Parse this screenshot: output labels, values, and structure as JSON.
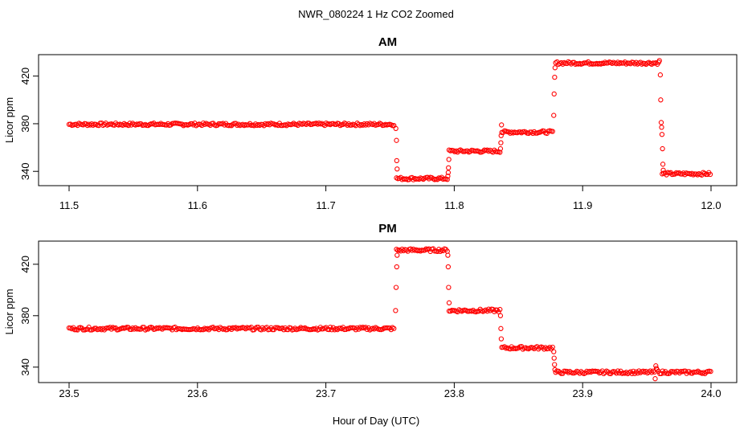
{
  "figure": {
    "title": "NWR_080224  1 Hz CO2 Zoomed",
    "xlabel": "Hour of Day (UTC)"
  },
  "chart_data": [
    {
      "type": "scatter",
      "title": "AM",
      "xlabel": "Hour of Day (UTC)",
      "ylabel": "Licor ppm",
      "xlim": [
        11.5,
        12.0
      ],
      "ylim": [
        328,
        438
      ],
      "xticks": [
        "11.5",
        "11.6",
        "11.7",
        "11.8",
        "11.9",
        "12.0"
      ],
      "yticks": [
        "340",
        "380",
        "420"
      ],
      "marker_color": "#ff0000",
      "marker": "open-circle",
      "grid": false,
      "segments": [
        {
          "x": [
            11.5,
            11.754
          ],
          "y": 379.5
        },
        {
          "x": [
            11.755,
            11.795
          ],
          "y": 334
        },
        {
          "x": [
            11.796,
            11.836
          ],
          "y": 357
        },
        {
          "x": [
            11.837,
            11.877
          ],
          "y": 373
        },
        {
          "x": [
            11.879,
            11.96
          ],
          "y": 431
        },
        {
          "x": [
            11.962,
            12.0
          ],
          "y": 338
        }
      ],
      "transition_points": [
        {
          "x": 11.7545,
          "y": 376
        },
        {
          "x": 11.755,
          "y": 366
        },
        {
          "x": 11.7552,
          "y": 349
        },
        {
          "x": 11.7555,
          "y": 342
        },
        {
          "x": 11.795,
          "y": 336
        },
        {
          "x": 11.7953,
          "y": 339
        },
        {
          "x": 11.7955,
          "y": 343
        },
        {
          "x": 11.7958,
          "y": 350
        },
        {
          "x": 11.836,
          "y": 359
        },
        {
          "x": 11.8363,
          "y": 364
        },
        {
          "x": 11.8365,
          "y": 370
        },
        {
          "x": 11.8368,
          "y": 379
        },
        {
          "x": 11.8775,
          "y": 387
        },
        {
          "x": 11.8778,
          "y": 405
        },
        {
          "x": 11.8782,
          "y": 419
        },
        {
          "x": 11.8785,
          "y": 427
        },
        {
          "x": 11.9598,
          "y": 433
        },
        {
          "x": 11.9605,
          "y": 421
        },
        {
          "x": 11.9608,
          "y": 400
        },
        {
          "x": 11.9612,
          "y": 381
        },
        {
          "x": 11.9615,
          "y": 377
        },
        {
          "x": 11.9618,
          "y": 371
        },
        {
          "x": 11.9622,
          "y": 359
        },
        {
          "x": 11.9625,
          "y": 346
        },
        {
          "x": 11.9628,
          "y": 341
        }
      ]
    },
    {
      "type": "scatter",
      "title": "PM",
      "xlabel": "Hour of Day (UTC)",
      "ylabel": "Licor ppm",
      "xlim": [
        23.5,
        24.0
      ],
      "ylim": [
        328,
        438
      ],
      "xticks": [
        "23.5",
        "23.6",
        "23.7",
        "23.8",
        "23.9",
        "24.0"
      ],
      "yticks": [
        "340",
        "380",
        "420"
      ],
      "marker_color": "#ff0000",
      "marker": "open-circle",
      "grid": false,
      "segments": [
        {
          "x": [
            23.5,
            23.754
          ],
          "y": 370
        },
        {
          "x": [
            23.755,
            23.795
          ],
          "y": 431
        },
        {
          "x": [
            23.796,
            23.836
          ],
          "y": 384
        },
        {
          "x": [
            23.837,
            23.877
          ],
          "y": 355
        },
        {
          "x": [
            23.879,
            23.957
          ],
          "y": 336
        },
        {
          "x": [
            23.959,
            24.0
          ],
          "y": 336
        }
      ],
      "transition_points": [
        {
          "x": 23.7543,
          "y": 384
        },
        {
          "x": 23.7547,
          "y": 402
        },
        {
          "x": 23.7552,
          "y": 418
        },
        {
          "x": 23.7555,
          "y": 427
        },
        {
          "x": 23.795,
          "y": 427
        },
        {
          "x": 23.7953,
          "y": 418
        },
        {
          "x": 23.7956,
          "y": 402
        },
        {
          "x": 23.796,
          "y": 390
        },
        {
          "x": 23.836,
          "y": 380
        },
        {
          "x": 23.8363,
          "y": 370
        },
        {
          "x": 23.8366,
          "y": 362
        },
        {
          "x": 23.8775,
          "y": 352
        },
        {
          "x": 23.8778,
          "y": 347
        },
        {
          "x": 23.8781,
          "y": 342
        },
        {
          "x": 23.8784,
          "y": 338
        },
        {
          "x": 23.9565,
          "y": 331
        },
        {
          "x": 23.957,
          "y": 341
        },
        {
          "x": 23.9575,
          "y": 339
        },
        {
          "x": 23.958,
          "y": 338
        }
      ]
    }
  ]
}
